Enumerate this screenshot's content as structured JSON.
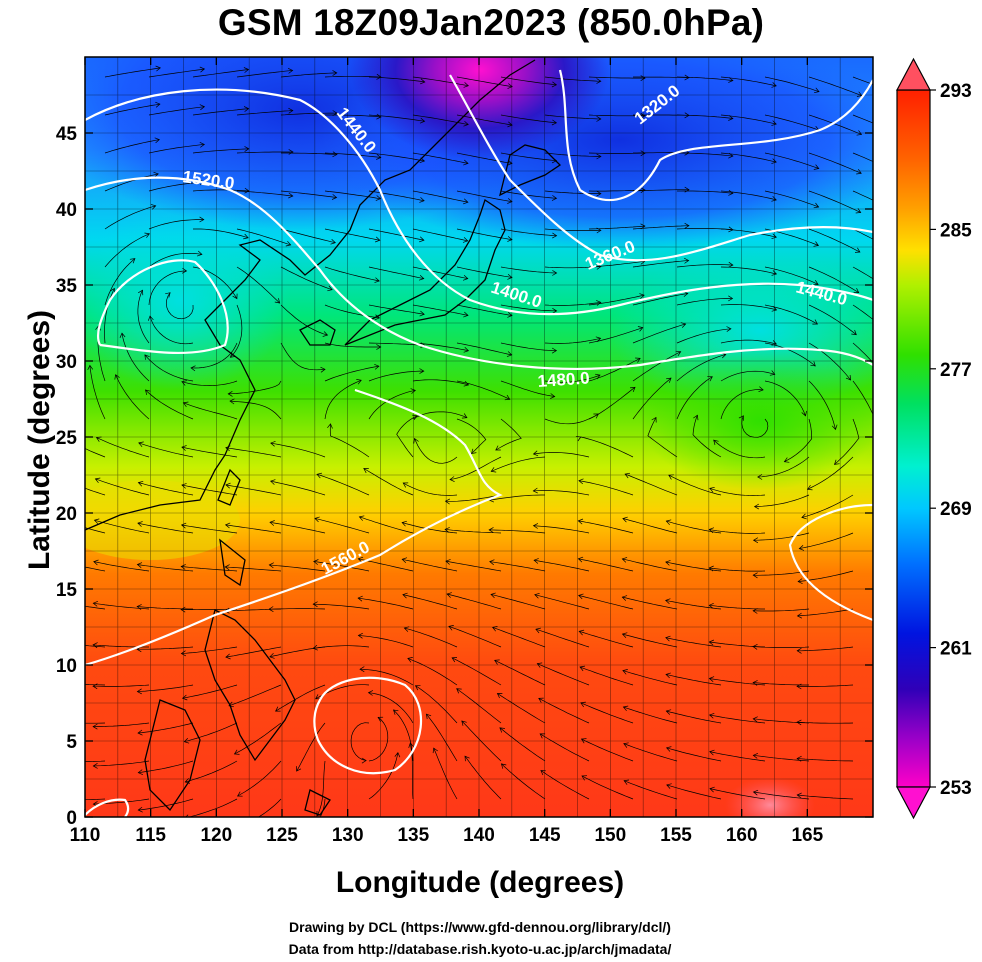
{
  "title": "GSM 18Z09Jan2023 (850.0hPa)",
  "x_axis": {
    "label": "Longitude (degrees)",
    "range": [
      110,
      170
    ],
    "ticks": [
      110,
      115,
      120,
      125,
      130,
      135,
      140,
      145,
      150,
      155,
      160,
      165
    ]
  },
  "y_axis": {
    "label": "Latitude  (degrees)",
    "range": [
      0,
      50
    ],
    "ticks": [
      0,
      5,
      10,
      15,
      20,
      25,
      30,
      35,
      40,
      45
    ]
  },
  "colorbar": {
    "ticks": [
      293,
      285,
      277,
      269,
      261,
      253
    ],
    "range": [
      253,
      293
    ],
    "colors": [
      "#ff00c8",
      "#9a00c8",
      "#3000b8",
      "#0014e0",
      "#0070ff",
      "#00c8ff",
      "#00f0d0",
      "#00e060",
      "#30e000",
      "#b0f000",
      "#ffe000",
      "#ffa000",
      "#ff6400",
      "#ff3000",
      "#ff2000"
    ]
  },
  "contour_labels": [
    "1320.0",
    "1360.0",
    "1400.0",
    "1440.0",
    "1440.0",
    "1480.0",
    "1520.0",
    "1560.0"
  ],
  "credits": {
    "line1": "Drawing by DCL (https://www.gfd-dennou.org/library/dcl/)",
    "line2": "Data from http://database.rish.kyoto-u.ac.jp/arch/jmadata/"
  }
}
